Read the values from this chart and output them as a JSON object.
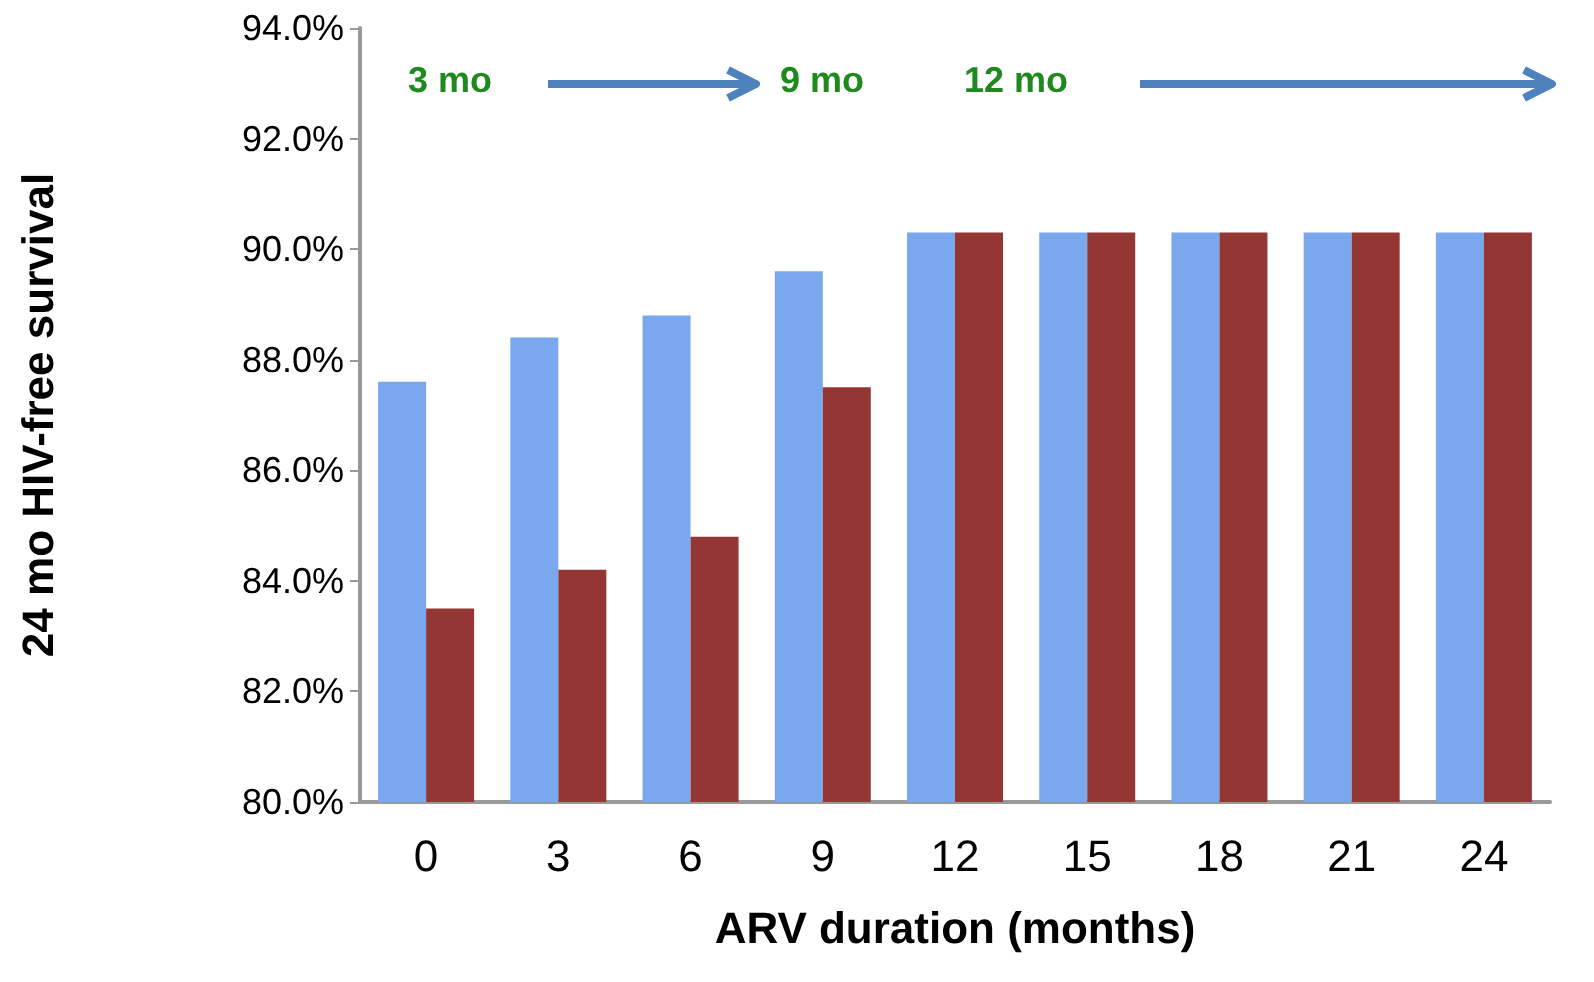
{
  "chart_data": {
    "type": "bar",
    "xlabel": "ARV duration (months)",
    "ylabel": "24 mo HIV-free survival",
    "categories": [
      "0",
      "3",
      "6",
      "9",
      "12",
      "15",
      "18",
      "21",
      "24"
    ],
    "series": [
      {
        "color": "#7aa8ee",
        "values": [
          87.6,
          88.4,
          88.8,
          89.6,
          90.3,
          90.3,
          90.3,
          90.3,
          90.3
        ]
      },
      {
        "color": "#943634",
        "values": [
          83.5,
          84.2,
          84.8,
          87.5,
          90.3,
          90.3,
          90.3,
          90.3,
          90.3
        ]
      }
    ],
    "ylim": [
      80,
      94
    ],
    "yticks": [
      {
        "value": 80,
        "label": "80.0%"
      },
      {
        "value": 82,
        "label": "82.0%"
      },
      {
        "value": 84,
        "label": "84.0%"
      },
      {
        "value": 86,
        "label": "86.0%"
      },
      {
        "value": 88,
        "label": "88.0%"
      },
      {
        "value": 90,
        "label": "90.0%"
      },
      {
        "value": 92,
        "label": "92.0%"
      },
      {
        "value": 94,
        "label": "94.0%"
      }
    ],
    "annotations": [
      "3 mo",
      "9 mo",
      "12 mo"
    ],
    "grid": false
  }
}
